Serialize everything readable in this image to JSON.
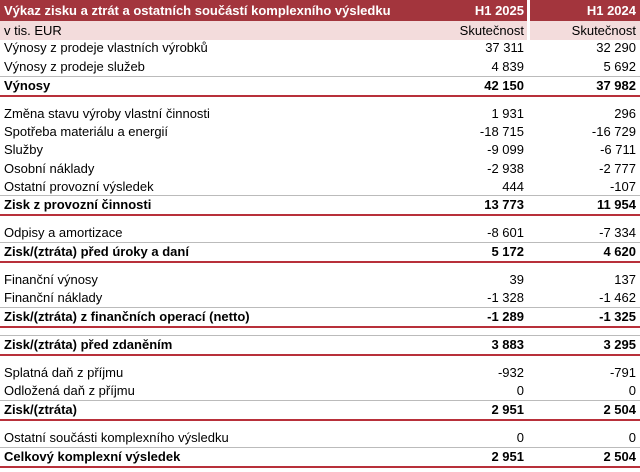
{
  "header": {
    "title": "Výkaz zisku a ztrát a ostatních součástí komplexního výsledku",
    "columns": [
      "H1 2025",
      "H1 2024"
    ]
  },
  "subheader": {
    "unit": "v tis. EUR",
    "columns": [
      "Skutečnost",
      "Skutečnost"
    ]
  },
  "table": {
    "rows": [
      {
        "label": "Výnosy z prodeje vlastních výrobků",
        "values": [
          "37 311",
          "32 290"
        ]
      },
      {
        "label": "Výnosy z prodeje služeb",
        "values": [
          "4 839",
          "5 692"
        ]
      },
      {
        "label": "Výnosy",
        "values": [
          "42 150",
          "37 982"
        ],
        "bold": true
      },
      {
        "label": "Změna stavu výroby vlastní činnosti",
        "values": [
          "1 931",
          "296"
        ]
      },
      {
        "label": "Spotřeba materiálu a energií",
        "values": [
          "-18 715",
          "-16 729"
        ]
      },
      {
        "label": "Služby",
        "values": [
          "-9 099",
          "-6 711"
        ]
      },
      {
        "label": "Osobní náklady",
        "values": [
          "-2 938",
          "-2 777"
        ]
      },
      {
        "label": "Ostatní provozní výsledek",
        "values": [
          "444",
          "-107"
        ]
      },
      {
        "label": "Zisk z provozní činnosti",
        "values": [
          "13 773",
          "11 954"
        ],
        "bold": true
      },
      {
        "label": "Odpisy a amortizace",
        "values": [
          "-8 601",
          "-7 334"
        ]
      },
      {
        "label": "Zisk/(ztráta) před úroky a daní",
        "values": [
          "5 172",
          "4 620"
        ],
        "bold": true
      },
      {
        "label": "Finanční výnosy",
        "values": [
          "39",
          "137"
        ]
      },
      {
        "label": "Finanční náklady",
        "values": [
          "-1 328",
          "-1 462"
        ]
      },
      {
        "label": "Zisk/(ztráta) z finančních operací (netto)",
        "values": [
          "-1 289",
          "-1 325"
        ],
        "bold": true
      },
      {
        "label": "Zisk/(ztráta) před zdaněním",
        "values": [
          "3 883",
          "3 295"
        ],
        "bold": true
      },
      {
        "label": "Splatná daň z příjmu",
        "values": [
          "-932",
          "-791"
        ]
      },
      {
        "label": "Odložená daň z příjmu",
        "values": [
          "0",
          "0"
        ]
      },
      {
        "label": "Zisk/(ztráta)",
        "values": [
          "2 951",
          "2 504"
        ],
        "bold": true
      },
      {
        "label": "Ostatní součásti komplexního výsledku",
        "values": [
          "0",
          "0"
        ]
      },
      {
        "label": "Celkový komplexní výsledek",
        "values": [
          "2 951",
          "2 504"
        ],
        "bold": true
      }
    ]
  }
}
